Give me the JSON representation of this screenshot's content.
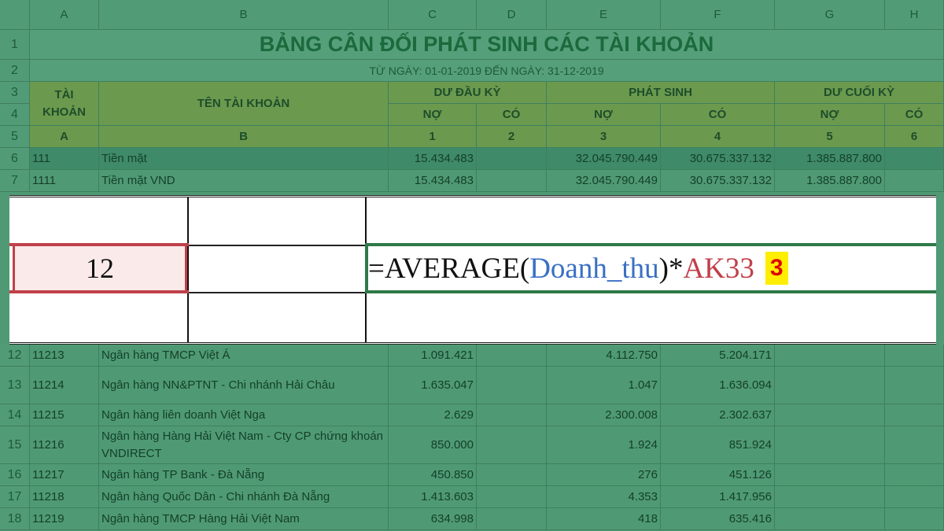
{
  "columns": [
    "A",
    "B",
    "C",
    "D",
    "E",
    "F",
    "G",
    "H"
  ],
  "title": "BẢNG CÂN ĐỐI PHÁT SINH CÁC TÀI KHOẢN",
  "subtitle": "TỪ NGÀY: 01-01-2019 ĐẾN NGÀY: 31-12-2019",
  "headers": {
    "tai_khoan": "TÀI KHOẢN",
    "ten_tai_khoan": "TÊN TÀI KHOẢN",
    "du_dau_ky": "DƯ ĐẦU KỲ",
    "phat_sinh": "PHÁT SINH",
    "du_cuoi_ky": "DƯ CUỐI KỲ",
    "no": "NỢ",
    "co": "CÓ",
    "codes": [
      "A",
      "B",
      "1",
      "2",
      "3",
      "4",
      "5",
      "6"
    ]
  },
  "rows": [
    {
      "n": "6",
      "acc": "111",
      "name": "Tiền mặt",
      "c": "15.434.483",
      "d": "",
      "e": "32.045.790.449",
      "f": "30.675.337.132",
      "g": "1.385.887.800"
    },
    {
      "n": "7",
      "acc": "1111",
      "name": "Tiền mặt VND",
      "c": "15.434.483",
      "d": "",
      "e": "32.045.790.449",
      "f": "30.675.337.132",
      "g": "1.385.887.800"
    },
    {
      "n": "12",
      "acc": "11213",
      "name": "Ngân hàng TMCP Việt Á",
      "c": "1.091.421",
      "d": "",
      "e": "4.112.750",
      "f": "5.204.171",
      "g": ""
    },
    {
      "n": "13",
      "acc": "11214",
      "name": "Ngân hàng NN&PTNT - Chi nhánh Hải Châu",
      "c": "1.635.047",
      "d": "",
      "e": "1.047",
      "f": "1.636.094",
      "g": ""
    },
    {
      "n": "14",
      "acc": "11215",
      "name": "Ngân hàng liên doanh Việt Nga",
      "c": "2.629",
      "d": "",
      "e": "2.300.008",
      "f": "2.302.637",
      "g": ""
    },
    {
      "n": "15",
      "acc": "11216",
      "name": "Ngân hàng Hàng Hải Việt Nam - Cty CP chứng khoán VNDIRECT",
      "c": "850.000",
      "d": "",
      "e": "1.924",
      "f": "851.924",
      "g": ""
    },
    {
      "n": "16",
      "acc": "11217",
      "name": "Ngân hàng TP Bank - Đà Nẵng",
      "c": "450.850",
      "d": "",
      "e": "276",
      "f": "451.126",
      "g": ""
    },
    {
      "n": "17",
      "acc": "11218",
      "name": "Ngân hàng Quốc Dân - Chi nhánh Đà Nẵng",
      "c": "1.413.603",
      "d": "",
      "e": "4.353",
      "f": "1.417.956",
      "g": ""
    },
    {
      "n": "18",
      "acc": "11219",
      "name": "Ngân hàng TMCP Hàng Hải Việt Nam",
      "c": "634.998",
      "d": "",
      "e": "418",
      "f": "635.416",
      "g": ""
    }
  ],
  "overlay": {
    "cell_value": "12",
    "formula_prefix": "=AVERAGE(",
    "formula_range": "Doanh_thu",
    "formula_mid": ")*",
    "formula_ref": "AK33",
    "step_badge": "3"
  },
  "colors": {
    "badge_bg": "#ffee00",
    "badge_text": "#e00000",
    "range_blue": "#3a6fc4",
    "ref_red": "#c0404a"
  }
}
